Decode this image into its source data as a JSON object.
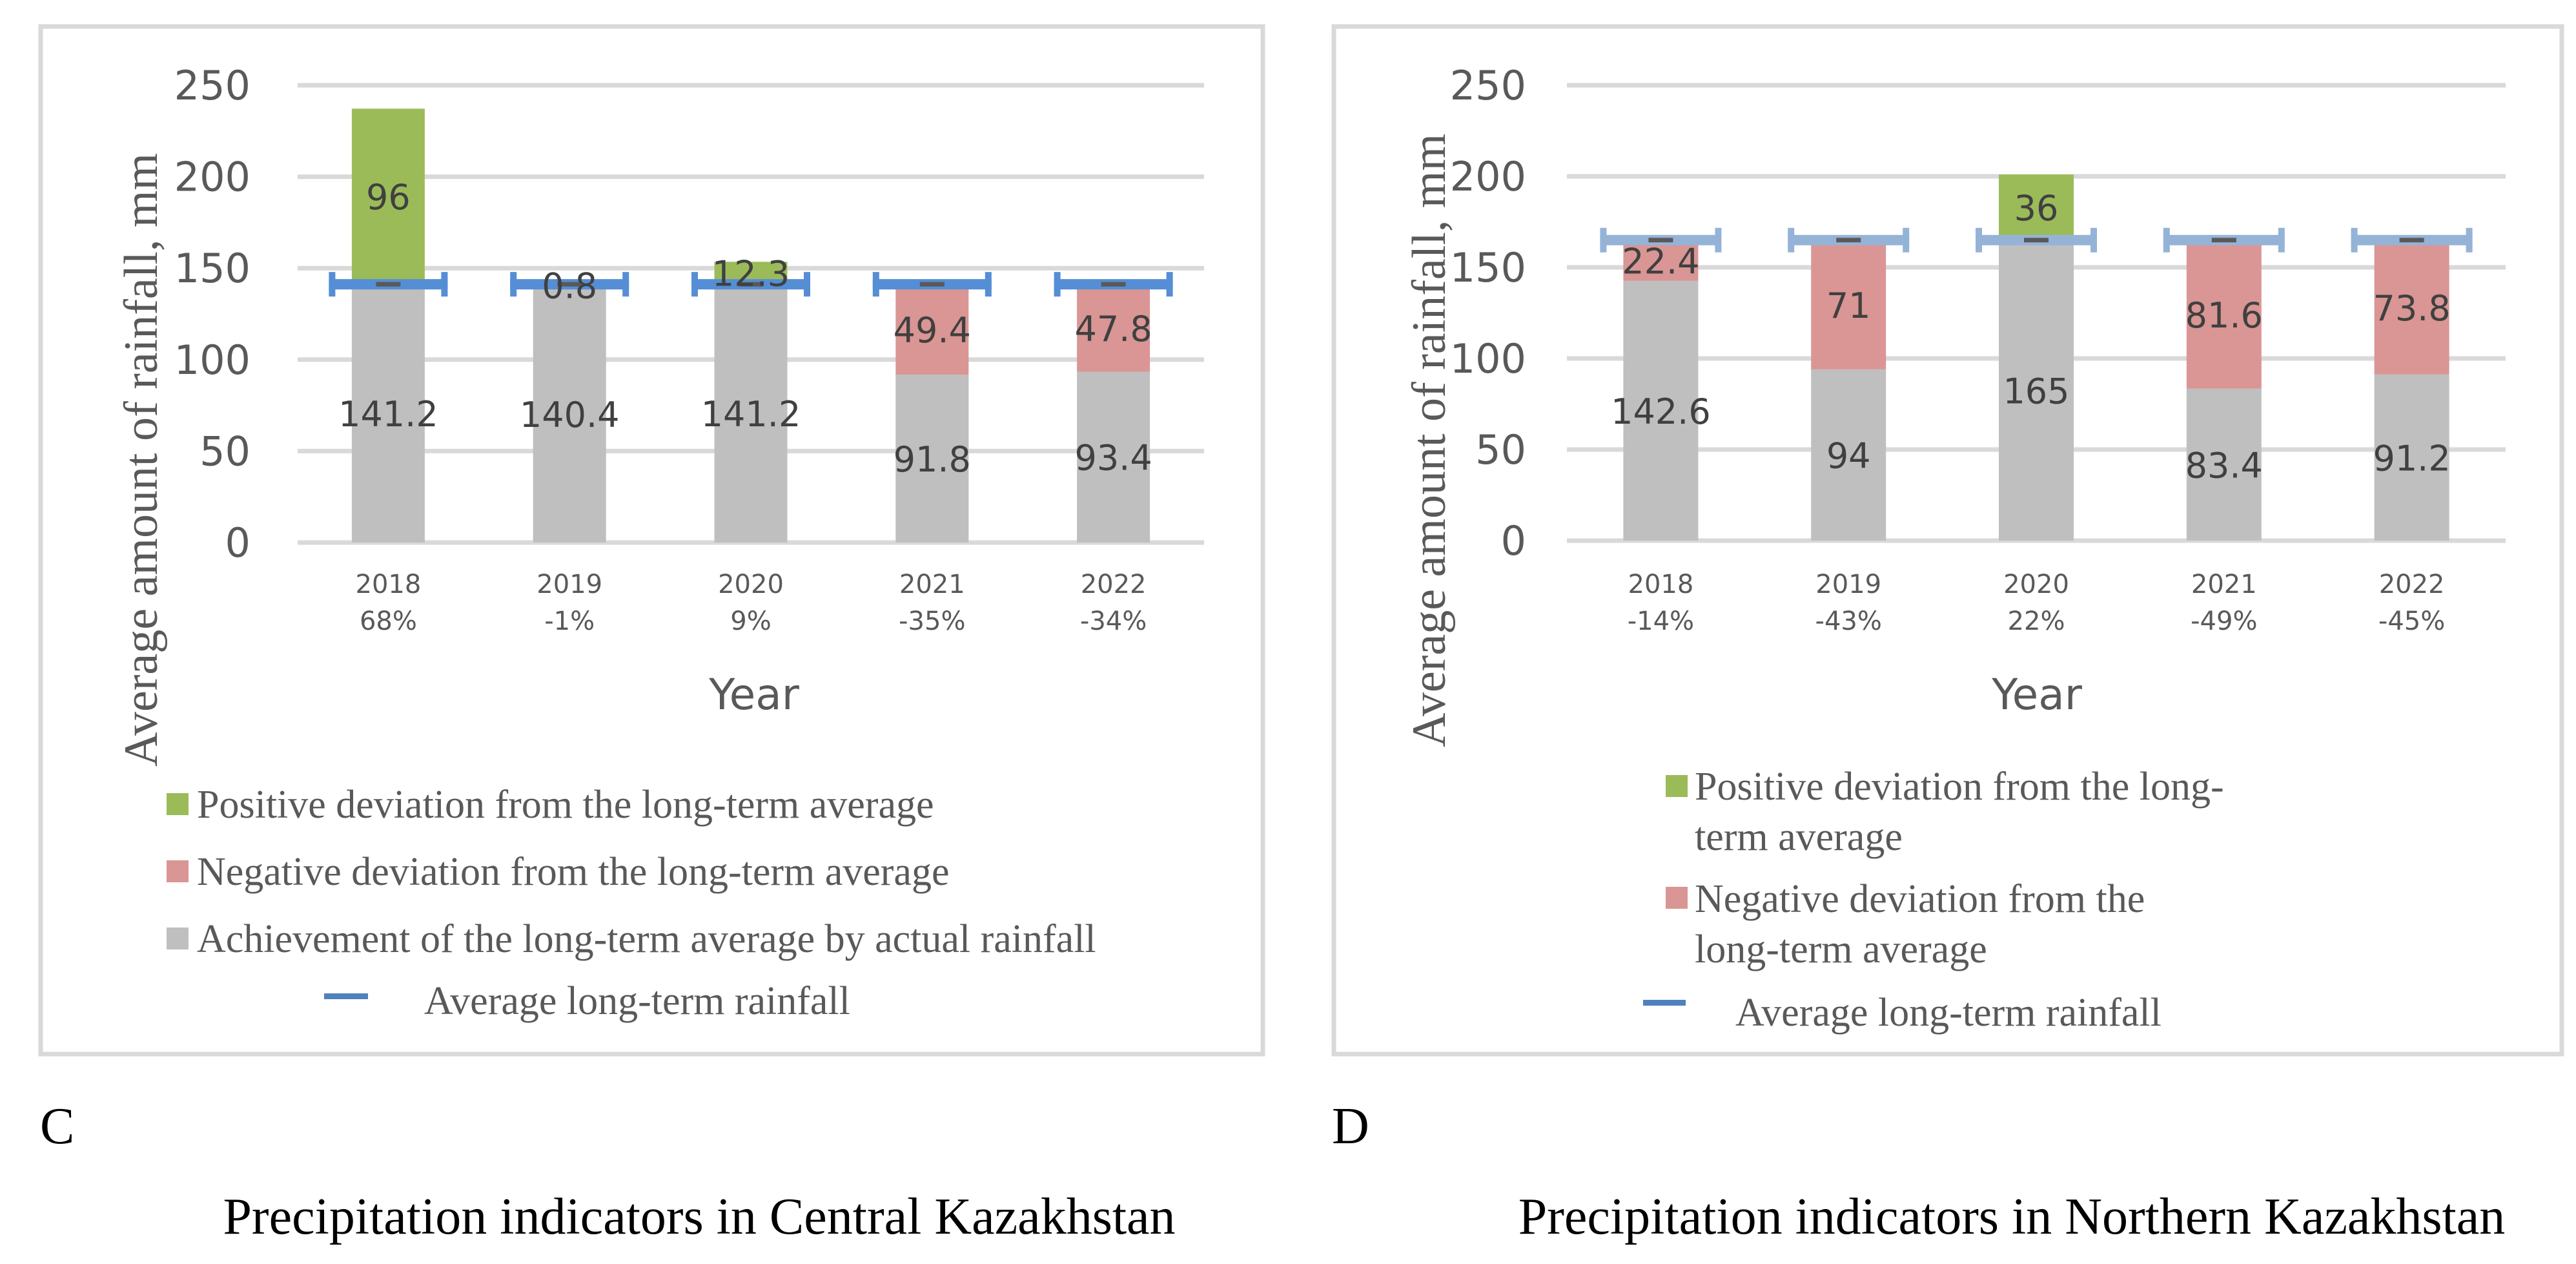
{
  "figure": {
    "panels": [
      {
        "letter": "C",
        "caption": "Precipitation indicators in Central Kazakhstan"
      },
      {
        "letter": "D",
        "caption": "Precipitation indicators in Northern Kazakhstan"
      }
    ]
  },
  "colors": {
    "positive": "#9BBB59",
    "negative": "#D99694",
    "achievement": "#BFBFBF",
    "avg_marker": "#595959",
    "avg_errorbar_central": "#558ED5",
    "avg_errorbar_northern": "#95B3D7",
    "legend_avg_line": "#4F81BD"
  },
  "chart_data": [
    {
      "type": "bar",
      "stacked": true,
      "region": "Central Kazakhstan",
      "title": "Precipitation indicators in Central Kazakhstan",
      "xlabel": "Year",
      "ylabel": "Average amount of rainfall, mm",
      "ylim": [
        0,
        250
      ],
      "yticks": [
        0,
        50,
        100,
        150,
        200,
        250
      ],
      "grid": true,
      "legend_position": "bottom",
      "categories": [
        "2018",
        "2019",
        "2020",
        "2021",
        "2022"
      ],
      "category_percent": [
        "68%",
        "-1%",
        "9%",
        "-35%",
        "-34%"
      ],
      "long_term_average": 141.2,
      "series": [
        {
          "key": "achievement",
          "name": "Achievement of the long-term average by actual rainfall",
          "values": [
            141.2,
            140.4,
            141.2,
            91.8,
            93.4
          ],
          "labels": [
            "141.2",
            "140.4",
            "141.2",
            "91.8",
            "93.4"
          ]
        },
        {
          "key": "negative",
          "name": "Negative deviation from the long-term average",
          "values": [
            0,
            0.8,
            0,
            49.4,
            47.8
          ],
          "labels": [
            "",
            "0.8",
            "",
            "49.4",
            "47.8"
          ]
        },
        {
          "key": "positive",
          "name": "Positive deviation from the long-term average",
          "values": [
            96,
            0,
            12.3,
            0,
            0
          ],
          "labels": [
            "96",
            "",
            "12.3",
            "",
            ""
          ]
        }
      ],
      "average_series": {
        "name": "Average long-term rainfall",
        "values": [
          141.2,
          141.2,
          141.2,
          141.2,
          141.2
        ]
      },
      "legend": [
        {
          "key": "positive",
          "label": "Positive deviation from the long-term average"
        },
        {
          "key": "negative",
          "label": "Negative deviation from the long-term average"
        },
        {
          "key": "achievement",
          "label": "Achievement of the long-term average by actual rainfall"
        },
        {
          "key": "average",
          "label": "Average long-term rainfall"
        }
      ]
    },
    {
      "type": "bar",
      "stacked": true,
      "region": "Northern Kazakhstan",
      "title": "Precipitation indicators in Northern Kazakhstan",
      "xlabel": "Year",
      "ylabel": "Average amount of rainfall, mm",
      "ylim": [
        0,
        250
      ],
      "yticks": [
        0,
        50,
        100,
        150,
        200,
        250
      ],
      "grid": true,
      "legend_position": "bottom",
      "categories": [
        "2018",
        "2019",
        "2020",
        "2021",
        "2022"
      ],
      "category_percent": [
        "-14%",
        "-43%",
        "22%",
        "-49%",
        "-45%"
      ],
      "long_term_average": 165,
      "series": [
        {
          "key": "achievement",
          "name": "Achievement of the long-term average by actual rainfall",
          "values": [
            142.6,
            94,
            165,
            83.4,
            91.2
          ],
          "labels": [
            "142.6",
            "94",
            "165",
            "83.4",
            "91.2"
          ]
        },
        {
          "key": "negative",
          "name": "Negative deviation from the long-term average",
          "values": [
            22.4,
            71,
            0,
            81.6,
            73.8
          ],
          "labels": [
            "22.4",
            "71",
            "",
            "81.6",
            "73.8"
          ]
        },
        {
          "key": "positive",
          "name": "Positive deviation from the long-term average",
          "values": [
            0,
            0,
            36,
            0,
            0
          ],
          "labels": [
            "",
            "",
            "36",
            "",
            ""
          ]
        }
      ],
      "average_series": {
        "name": "Average long-term rainfall",
        "values": [
          165,
          165,
          165,
          165,
          165
        ]
      },
      "legend": [
        {
          "key": "positive",
          "label_lines": [
            "Positive deviation from the long-",
            "term average"
          ]
        },
        {
          "key": "negative",
          "label_lines": [
            "Negative deviation from the",
            "long-term average"
          ]
        },
        {
          "key": "average",
          "label_lines": [
            "Average long-term rainfall"
          ]
        }
      ]
    }
  ]
}
